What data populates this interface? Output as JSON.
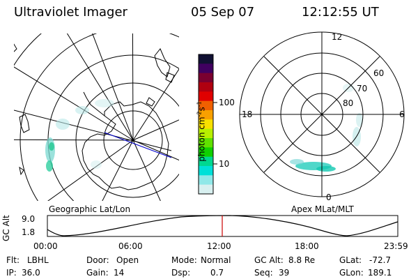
{
  "header": {
    "title": "Ultraviolet Imager",
    "date": "05 Sep 07",
    "time": "12:12:55 UT"
  },
  "left_panel": {
    "caption": "Geographic Lat/Lon"
  },
  "colorbar": {
    "label": "photon cm",
    "label_sup1": "-2",
    "label_mid": "s",
    "label_sup2": "-1",
    "tick_100": "100",
    "tick_10": "10",
    "colors": [
      "#111133",
      "#400060",
      "#7a0030",
      "#b00010",
      "#e00000",
      "#f06000",
      "#f8a000",
      "#f8e000",
      "#b8f000",
      "#60e000",
      "#10d000",
      "#00d890",
      "#00e0d8",
      "#90e8e8",
      "#d8f0f0"
    ]
  },
  "right_panel": {
    "caption": "Apex MLat/MLT",
    "mlt_12": "12",
    "mlt_18": "18",
    "mlt_6": "6",
    "mlt_0": "0",
    "lat_60": "60",
    "lat_70": "70",
    "lat_80": "80"
  },
  "altitude_plot": {
    "ylabel": "GC Alt",
    "y_high": "9.0",
    "y_low": "1.8",
    "x_ticks": [
      "00:00",
      "06:00",
      "12:00",
      "18:00",
      "23:59"
    ],
    "marker_color": "#cc0000"
  },
  "info": {
    "filter_label": "Flt:",
    "filter_value": "LBHL",
    "door_label": "Door:",
    "door_value": "Open",
    "mode_label": "Mode:",
    "mode_value": "Normal",
    "gcalt_label": "GC Alt:",
    "gcalt_value": "8.8 Re",
    "glat_label": "GLat:",
    "glat_value": "-72.7",
    "ip_label": "IP:",
    "ip_value": "36.0",
    "gain_label": "Gain:",
    "gain_value": "14",
    "dsp_label": "Dsp:",
    "dsp_value": "0.7",
    "seq_label": "Seq:",
    "seq_value": "39",
    "glon_label": "GLon:",
    "glon_value": "189.1"
  }
}
